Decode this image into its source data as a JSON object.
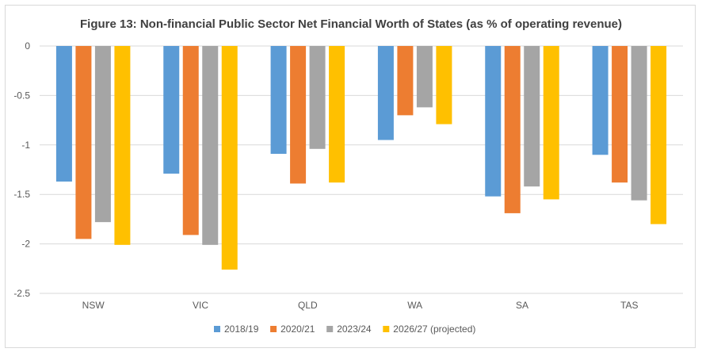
{
  "chart_data": {
    "type": "bar",
    "title": "Figure 13: Non-financial Public Sector Net Financial Worth of States (as % of operating revenue)",
    "xlabel": "",
    "ylabel": "",
    "categories": [
      "NSW",
      "VIC",
      "QLD",
      "WA",
      "SA",
      "TAS"
    ],
    "ylim": [
      -2.5,
      0
    ],
    "yticks": [
      0,
      -0.5,
      -1,
      -1.5,
      -2,
      -2.5
    ],
    "ytick_labels": [
      "0",
      "-0.5",
      "-1",
      "-1.5",
      "-2",
      "-2.5"
    ],
    "grid": true,
    "legend_position": "bottom",
    "series": [
      {
        "name": "2018/19",
        "color": "#5b9bd5",
        "values": [
          -1.37,
          -1.29,
          -1.09,
          -0.95,
          -1.52,
          -1.1
        ]
      },
      {
        "name": "2020/21",
        "color": "#ed7d31",
        "values": [
          -1.95,
          -1.91,
          -1.39,
          -0.7,
          -1.69,
          -1.38
        ]
      },
      {
        "name": "2023/24",
        "color": "#a5a5a5",
        "values": [
          -1.78,
          -2.01,
          -1.04,
          -0.62,
          -1.42,
          -1.56
        ]
      },
      {
        "name": "2026/27 (projected)",
        "color": "#ffc000",
        "values": [
          -2.01,
          -2.26,
          -1.38,
          -0.79,
          -1.55,
          -1.8
        ]
      }
    ]
  }
}
